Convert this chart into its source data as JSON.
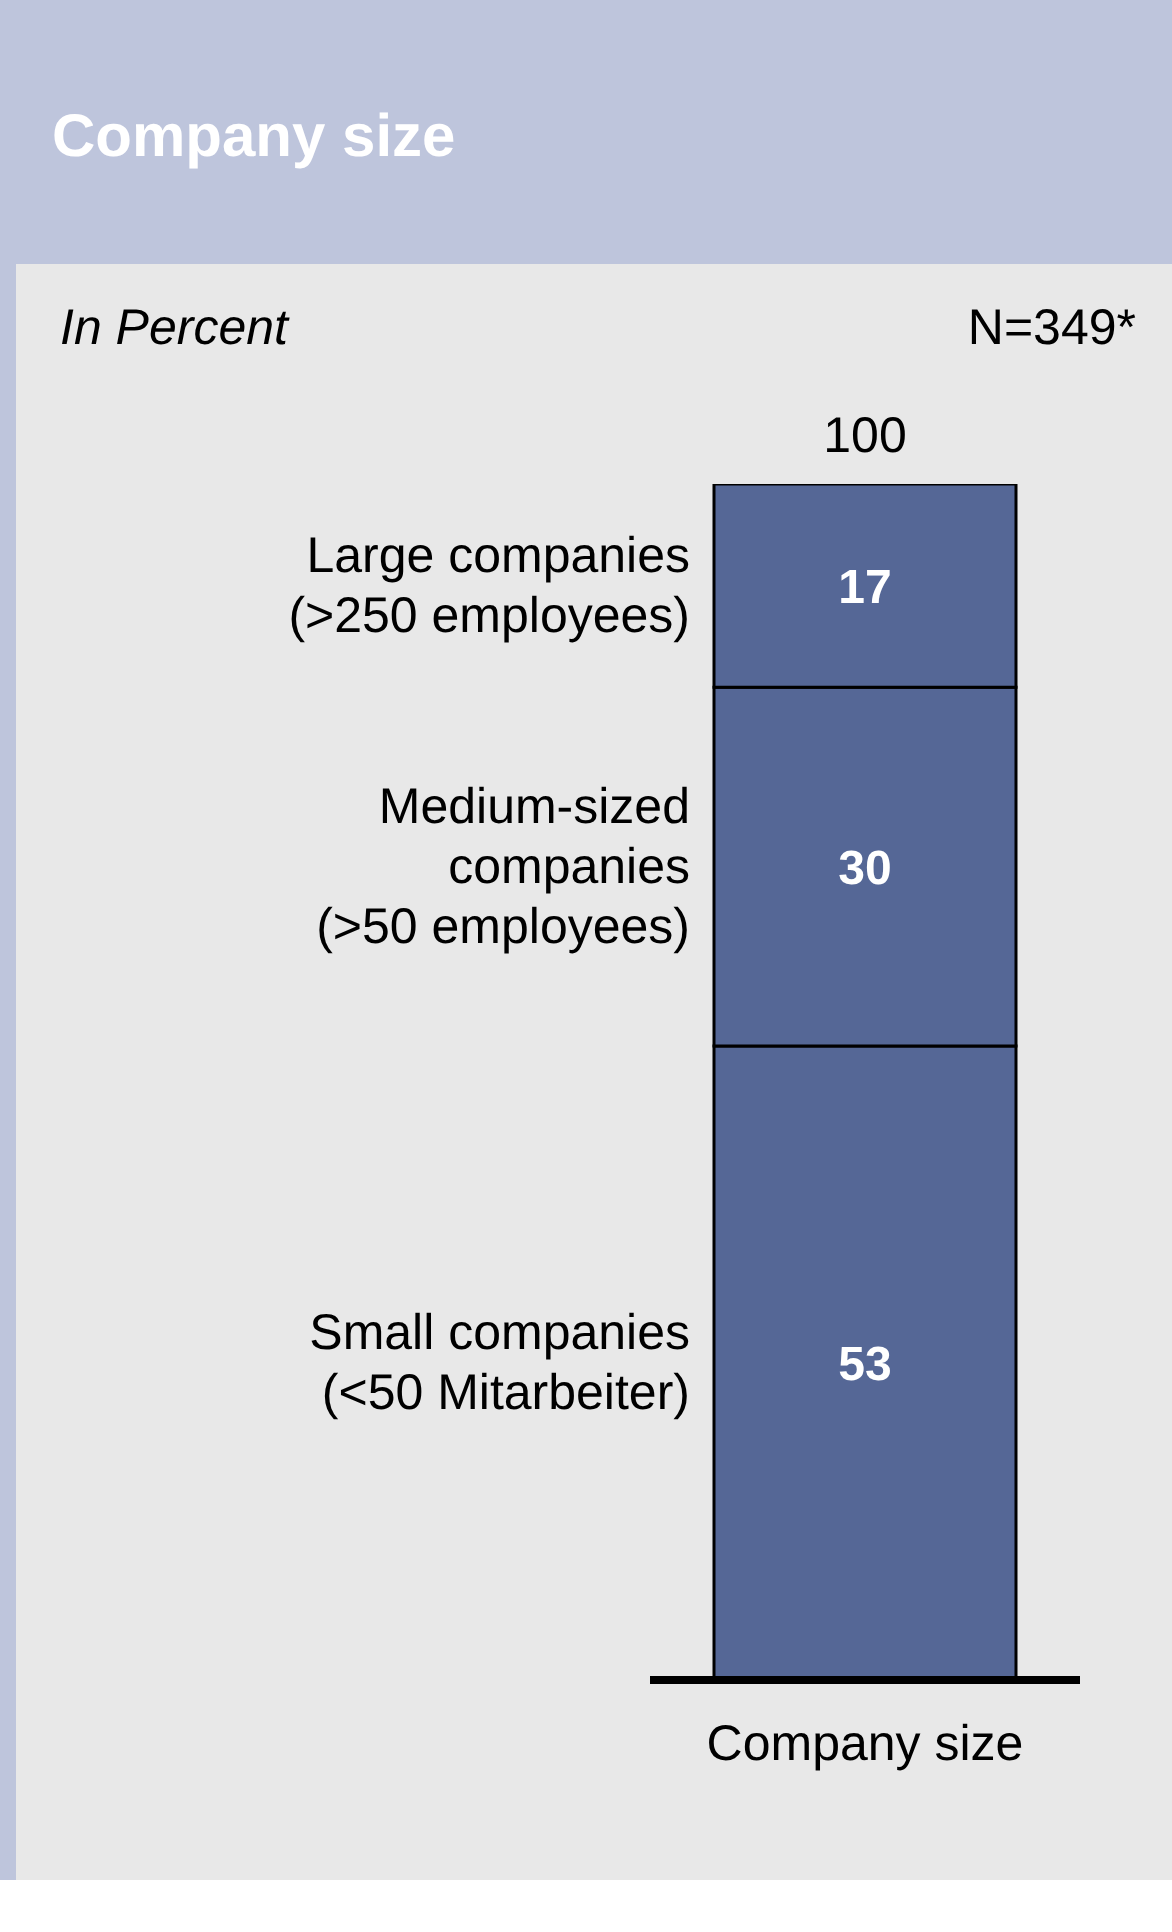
{
  "chart_data": {
    "type": "bar",
    "title": "Company size",
    "subtitle": "In Percent",
    "annotations": [
      "N=349*"
    ],
    "categories": [
      "Company size"
    ],
    "stacked": true,
    "ylim": [
      0,
      100
    ],
    "data_labels": true,
    "totals": [
      "100"
    ],
    "legend": false,
    "series": [
      {
        "name": "Small companies (<50 Mitarbeiter)",
        "color": "#556796",
        "values": [
          53
        ]
      },
      {
        "name": "Medium-sized companies (>50 employees)",
        "color": "#556796",
        "values": [
          30
        ]
      },
      {
        "name": "Large companies (>250 employees)",
        "color": "#556796",
        "values": [
          17
        ]
      }
    ]
  }
}
